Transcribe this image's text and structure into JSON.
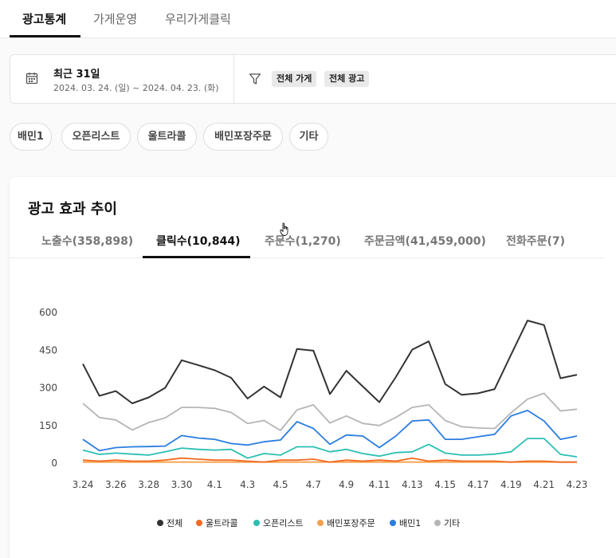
{
  "nav": {
    "tabs": [
      {
        "label": "광고통계"
      },
      {
        "label": "가게운영"
      },
      {
        "label": "우리가게클릭"
      }
    ]
  },
  "filter": {
    "period_title": "최근 31일",
    "period_range": "2024. 03. 24. (일) ~ 2024. 04. 23. (화)",
    "chips": [
      "전체 가게",
      "전체 광고"
    ]
  },
  "categories": [
    "배민1",
    "오픈리스트",
    "울트라콜",
    "배민포장주문",
    "기타"
  ],
  "card": {
    "title": "광고 효과 추이",
    "metric_tabs": [
      {
        "label": "노출수(358,898)"
      },
      {
        "label": "클릭수(10,844)"
      },
      {
        "label": "주문수(1,270)"
      },
      {
        "label": "주문금액(41,459,000)"
      },
      {
        "label": "전화주문(7)"
      }
    ]
  },
  "colors": {
    "total": "#333333",
    "ultracall": "#f26a21",
    "openlist": "#2bbfb3",
    "pickup": "#f7a04b",
    "baemin1": "#2a7de1",
    "etc": "#b5b5b5"
  },
  "icons": {
    "calendar": "calendar-icon",
    "filter": "funnel-icon",
    "cursor": "hand-cursor-icon"
  },
  "chart_data": {
    "type": "line",
    "x": [
      "3.24",
      "3.25",
      "3.26",
      "3.27",
      "3.28",
      "3.29",
      "3.30",
      "3.31",
      "4.1",
      "4.2",
      "4.3",
      "4.4",
      "4.5",
      "4.6",
      "4.7",
      "4.8",
      "4.9",
      "4.10",
      "4.11",
      "4.12",
      "4.13",
      "4.14",
      "4.15",
      "4.16",
      "4.17",
      "4.18",
      "4.19",
      "4.20",
      "4.21",
      "4.22",
      "4.23"
    ],
    "x_tick_labels": [
      "3.24",
      "3.26",
      "3.28",
      "3.30",
      "4.1",
      "4.3",
      "4.5",
      "4.7",
      "4.9",
      "4.11",
      "4.13",
      "4.15",
      "4.17",
      "4.19",
      "4.21",
      "4.23"
    ],
    "y_ticks": [
      "0",
      "150",
      "300",
      "450",
      "600"
    ],
    "ylim": [
      0,
      600
    ],
    "grid": false,
    "legend_position": "bottom",
    "series": [
      {
        "name": "전체",
        "color": "#333333",
        "values": [
          395,
          268,
          287,
          238,
          262,
          300,
          410,
          390,
          370,
          340,
          257,
          305,
          262,
          455,
          448,
          275,
          368,
          305,
          243,
          343,
          452,
          485,
          315,
          272,
          278,
          295,
          432,
          568,
          550,
          338,
          352
        ]
      },
      {
        "name": "울트라콜",
        "color": "#f26a21",
        "values": [
          12,
          8,
          12,
          8,
          8,
          12,
          20,
          16,
          12,
          12,
          8,
          4,
          12,
          12,
          16,
          4,
          12,
          8,
          12,
          8,
          20,
          8,
          12,
          8,
          8,
          8,
          4,
          8,
          8,
          4,
          4
        ]
      },
      {
        "name": "오픈리스트",
        "color": "#2bbfb3",
        "values": [
          52,
          35,
          40,
          36,
          32,
          45,
          60,
          55,
          52,
          55,
          20,
          38,
          32,
          65,
          65,
          45,
          55,
          38,
          28,
          42,
          45,
          75,
          40,
          32,
          32,
          36,
          45,
          98,
          98,
          35,
          25
        ]
      },
      {
        "name": "배민포장주문",
        "color": "#f7a04b",
        "values": [
          4,
          4,
          4,
          4,
          4,
          4,
          4,
          4,
          4,
          4,
          4,
          4,
          4,
          4,
          4,
          4,
          4,
          4,
          4,
          4,
          4,
          4,
          4,
          4,
          4,
          4,
          4,
          4,
          4,
          4,
          4
        ]
      },
      {
        "name": "배민1",
        "color": "#2a7de1",
        "values": [
          95,
          50,
          62,
          65,
          66,
          68,
          110,
          100,
          95,
          78,
          72,
          85,
          92,
          165,
          138,
          75,
          112,
          108,
          62,
          108,
          168,
          172,
          95,
          95,
          105,
          115,
          188,
          210,
          168,
          95,
          108
        ]
      },
      {
        "name": "기타",
        "color": "#b5b5b5",
        "values": [
          238,
          182,
          172,
          132,
          162,
          180,
          222,
          222,
          218,
          202,
          158,
          170,
          130,
          212,
          232,
          160,
          188,
          158,
          150,
          182,
          222,
          232,
          170,
          145,
          140,
          138,
          200,
          255,
          278,
          208,
          215
        ]
      }
    ]
  }
}
